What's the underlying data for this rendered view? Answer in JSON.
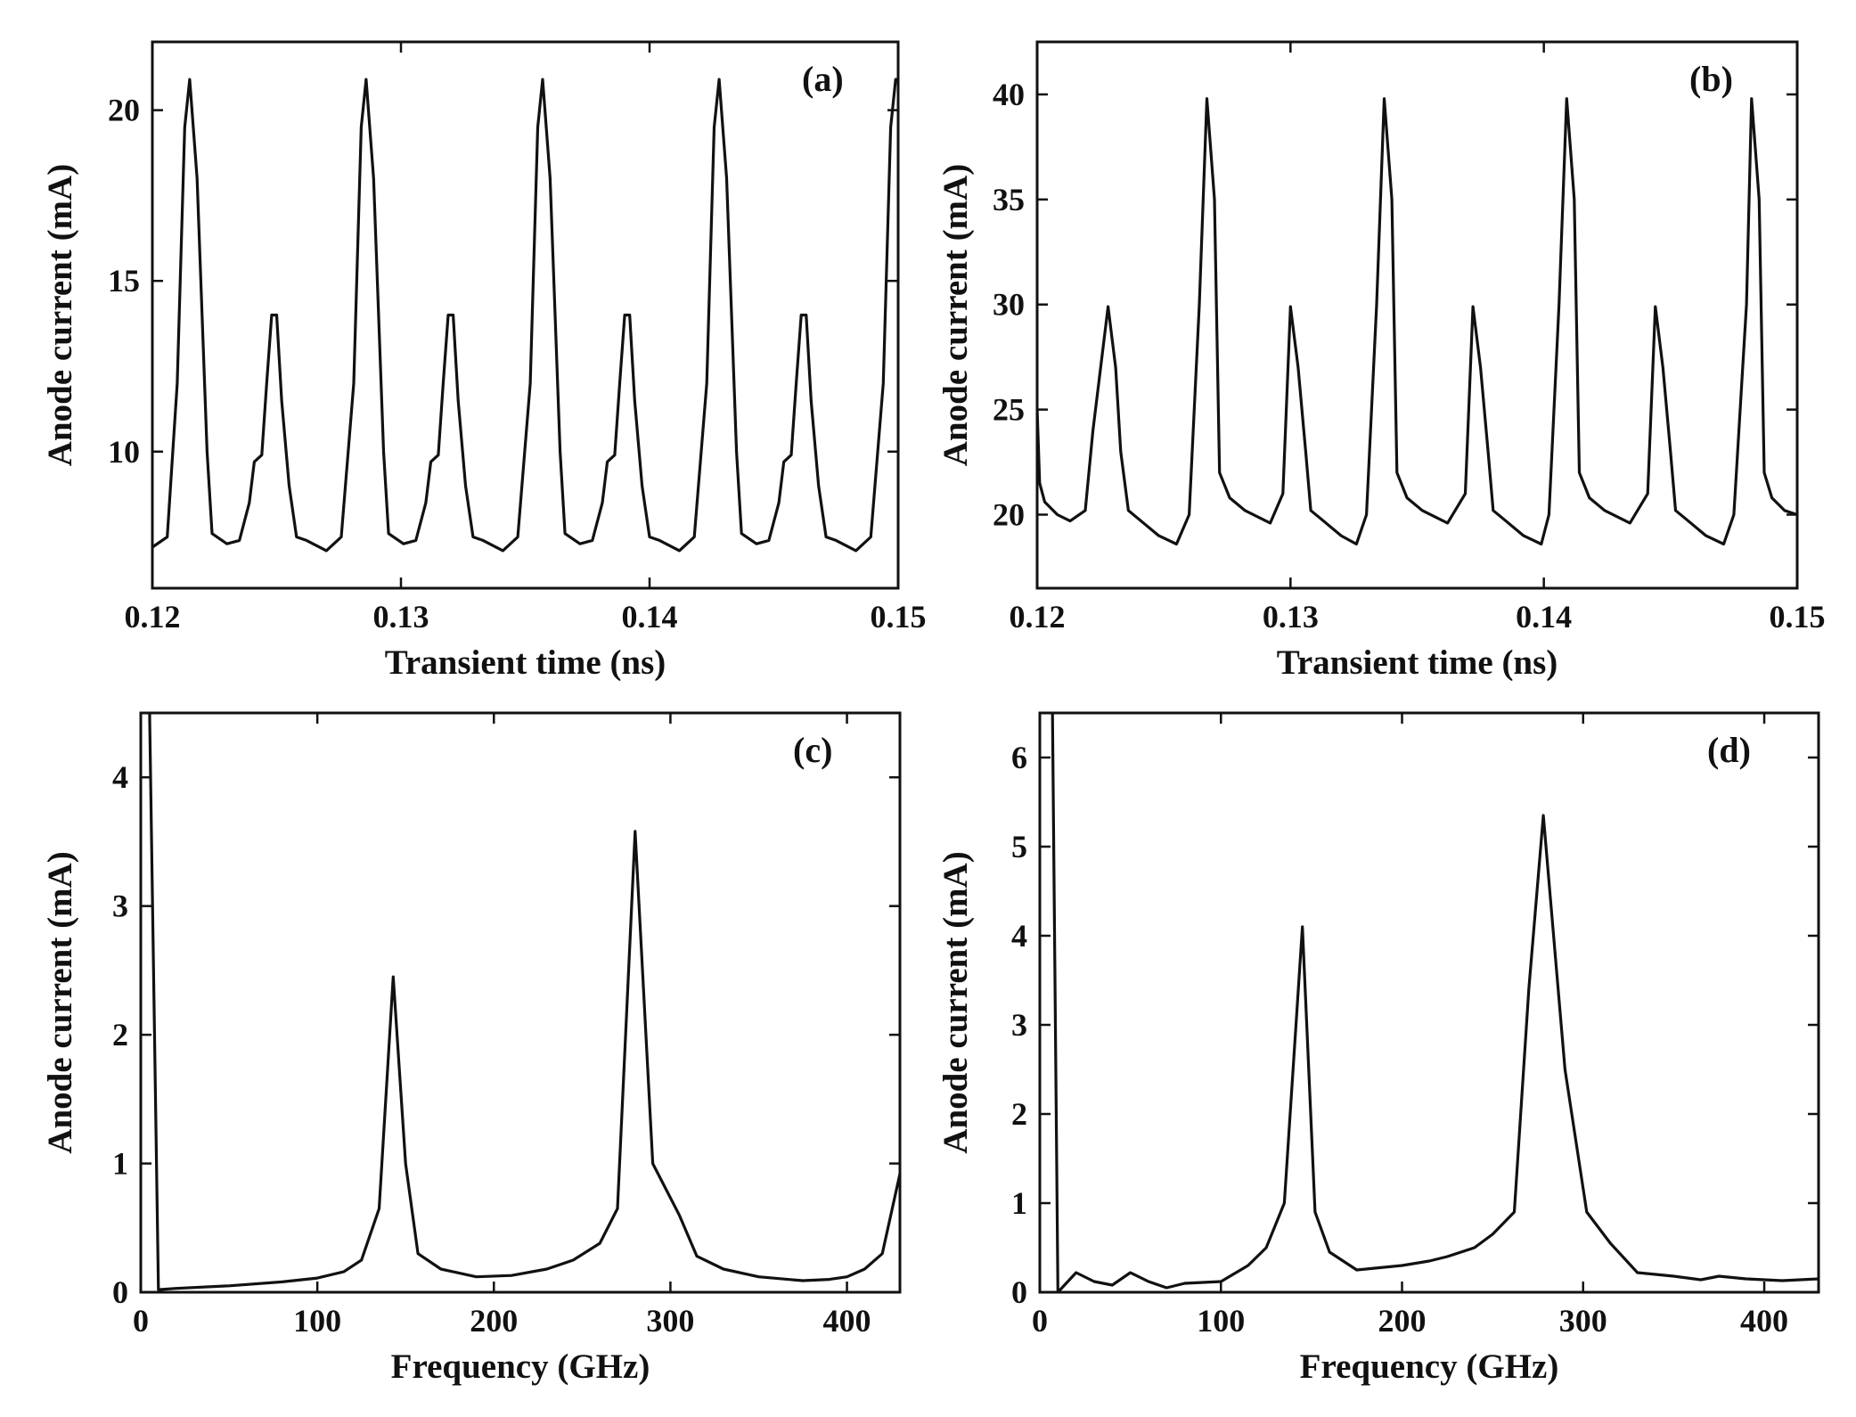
{
  "figure": {
    "panels": [
      "a",
      "b",
      "c",
      "d"
    ]
  },
  "chart_data": [
    {
      "id": "a",
      "type": "line",
      "label": "(a)",
      "xlabel": "Transient time (ns)",
      "ylabel": "Anode current (mA)",
      "xlim": [
        0.12,
        0.15
      ],
      "ylim": [
        6.0,
        22.0
      ],
      "xticks": [
        0.12,
        0.13,
        0.14,
        0.15
      ],
      "xtick_labels": [
        "0.12",
        "0.13",
        "0.14",
        "0.15"
      ],
      "yticks": [
        10,
        15,
        20
      ],
      "ytick_labels": [
        "10",
        "15",
        "20"
      ],
      "series": [
        {
          "name": "anode current",
          "x": [
            0.12,
            0.1206,
            0.121,
            0.1213,
            0.1215,
            0.1218,
            0.1222,
            0.1224,
            0.123,
            0.1235,
            0.1239,
            0.1241,
            0.1244,
            0.1246,
            0.1248,
            0.125,
            0.1252,
            0.1255,
            0.1258,
            0.1262,
            0.127,
            0.1276,
            0.1281,
            0.1284,
            0.1286,
            0.1289,
            0.1293,
            0.1295,
            0.1301,
            0.1306,
            0.131,
            0.1312,
            0.1315,
            0.1317,
            0.1319,
            0.1321,
            0.1323,
            0.1326,
            0.1329,
            0.1333,
            0.1341,
            0.1347,
            0.1352,
            0.1355,
            0.1357,
            0.136,
            0.1364,
            0.1366,
            0.1372,
            0.1377,
            0.1381,
            0.1383,
            0.1386,
            0.1388,
            0.139,
            0.1392,
            0.1394,
            0.1397,
            0.14,
            0.1404,
            0.1412,
            0.1418,
            0.1423,
            0.1426,
            0.1428,
            0.1431,
            0.1435,
            0.1437,
            0.1443,
            0.1448,
            0.1452,
            0.1454,
            0.1457,
            0.1459,
            0.1461,
            0.1463,
            0.1465,
            0.1468,
            0.1471,
            0.1475,
            0.1483,
            0.1489,
            0.1494,
            0.1497,
            0.1499,
            0.15
          ],
          "values": [
            7.2,
            7.5,
            12.0,
            19.5,
            20.9,
            18.0,
            10.0,
            7.6,
            7.3,
            7.4,
            8.5,
            9.7,
            9.9,
            12.0,
            14.0,
            14.0,
            11.5,
            9.0,
            7.5,
            7.4,
            7.1,
            7.5,
            12.0,
            19.5,
            20.9,
            18.0,
            10.0,
            7.6,
            7.3,
            7.4,
            8.5,
            9.7,
            9.9,
            12.0,
            14.0,
            14.0,
            11.5,
            9.0,
            7.5,
            7.4,
            7.1,
            7.5,
            12.0,
            19.5,
            20.9,
            18.0,
            10.0,
            7.6,
            7.3,
            7.4,
            8.5,
            9.7,
            9.9,
            12.0,
            14.0,
            14.0,
            11.5,
            9.0,
            7.5,
            7.4,
            7.1,
            7.5,
            12.0,
            19.5,
            20.9,
            18.0,
            10.0,
            7.6,
            7.3,
            7.4,
            8.5,
            9.7,
            9.9,
            12.0,
            14.0,
            14.0,
            11.5,
            9.0,
            7.5,
            7.4,
            7.1,
            7.5,
            12.0,
            19.5,
            20.9,
            20.9
          ]
        }
      ]
    },
    {
      "id": "b",
      "type": "line",
      "label": "(b)",
      "xlabel": "Transient time (ns)",
      "ylabel": "Anode current (mA)",
      "xlim": [
        0.12,
        0.15
      ],
      "ylim": [
        16.5,
        42.5
      ],
      "xticks": [
        0.12,
        0.13,
        0.14,
        0.15
      ],
      "xtick_labels": [
        "0.12",
        "0.13",
        "0.14",
        "0.15"
      ],
      "yticks": [
        20,
        25,
        30,
        35,
        40
      ],
      "ytick_labels": [
        "20",
        "25",
        "30",
        "35",
        "40"
      ],
      "series": [
        {
          "name": "anode current",
          "x": [
            0.12,
            0.1201,
            0.1203,
            0.1208,
            0.1213,
            0.1219,
            0.1222,
            0.1228,
            0.1231,
            0.1233,
            0.1236,
            0.124,
            0.1248,
            0.1255,
            0.126,
            0.1264,
            0.1267,
            0.127,
            0.1272,
            0.1276,
            0.1282,
            0.1292,
            0.1297,
            0.13,
            0.1303,
            0.1306,
            0.1308,
            0.1312,
            0.132,
            0.1326,
            0.133,
            0.1334,
            0.1337,
            0.134,
            0.1342,
            0.1346,
            0.1352,
            0.1362,
            0.1369,
            0.1372,
            0.1375,
            0.1378,
            0.138,
            0.1384,
            0.1392,
            0.1399,
            0.1402,
            0.1406,
            0.1409,
            0.1412,
            0.1414,
            0.1418,
            0.1424,
            0.1434,
            0.1441,
            0.1444,
            0.1447,
            0.145,
            0.1452,
            0.1456,
            0.1464,
            0.1471,
            0.1475,
            0.148,
            0.1482,
            0.1485,
            0.1487,
            0.149,
            0.1495,
            0.15
          ],
          "values": [
            25.0,
            21.5,
            20.6,
            20.0,
            19.7,
            20.2,
            24.0,
            29.9,
            27.0,
            23.0,
            20.2,
            19.8,
            19.0,
            18.6,
            20.0,
            30.0,
            39.8,
            35.0,
            22.0,
            20.8,
            20.2,
            19.6,
            21.0,
            29.9,
            27.0,
            23.0,
            20.2,
            19.8,
            19.0,
            18.6,
            20.0,
            30.0,
            39.8,
            35.0,
            22.0,
            20.8,
            20.2,
            19.6,
            21.0,
            29.9,
            27.0,
            23.0,
            20.2,
            19.8,
            19.0,
            18.6,
            20.0,
            30.0,
            39.8,
            35.0,
            22.0,
            20.8,
            20.2,
            19.6,
            21.0,
            29.9,
            27.0,
            23.0,
            20.2,
            19.8,
            19.0,
            18.6,
            20.0,
            30.0,
            39.8,
            35.0,
            22.0,
            20.8,
            20.2,
            20.0
          ]
        }
      ]
    },
    {
      "id": "c",
      "type": "line",
      "label": "(c)",
      "xlabel": "Frequency (GHz)",
      "ylabel": "Anode current (mA)",
      "xlim": [
        0,
        430
      ],
      "ylim": [
        0,
        4.5
      ],
      "xticks": [
        0,
        100,
        200,
        300,
        400
      ],
      "xtick_labels": [
        "0",
        "100",
        "200",
        "300",
        "400"
      ],
      "yticks": [
        0,
        1,
        2,
        3,
        4
      ],
      "ytick_labels": [
        "0",
        "1",
        "2",
        "3",
        "4"
      ],
      "series": [
        {
          "name": "spectrum",
          "x": [
            5,
            10,
            20,
            50,
            80,
            100,
            115,
            125,
            135,
            143,
            150,
            157,
            170,
            190,
            210,
            230,
            245,
            260,
            270,
            280,
            290,
            305,
            315,
            330,
            350,
            375,
            390,
            400,
            410,
            420,
            430
          ],
          "values": [
            4.5,
            0.02,
            0.03,
            0.05,
            0.08,
            0.11,
            0.16,
            0.25,
            0.65,
            2.45,
            1.0,
            0.3,
            0.18,
            0.12,
            0.13,
            0.18,
            0.25,
            0.38,
            0.65,
            3.58,
            1.0,
            0.6,
            0.28,
            0.18,
            0.12,
            0.09,
            0.1,
            0.12,
            0.18,
            0.3,
            0.92
          ]
        }
      ]
    },
    {
      "id": "d",
      "type": "line",
      "label": "(d)",
      "xlabel": "Frequency (GHz)",
      "ylabel": "Anode current (mA)",
      "xlim": [
        0,
        430
      ],
      "ylim": [
        0,
        6.5
      ],
      "xticks": [
        0,
        100,
        200,
        300,
        400
      ],
      "xtick_labels": [
        "0",
        "100",
        "200",
        "300",
        "400"
      ],
      "yticks": [
        0,
        1,
        2,
        3,
        4,
        5,
        6
      ],
      "ytick_labels": [
        "0",
        "1",
        "2",
        "3",
        "4",
        "5",
        "6"
      ],
      "series": [
        {
          "name": "spectrum",
          "x": [
            7,
            10,
            20,
            30,
            40,
            50,
            60,
            70,
            80,
            100,
            115,
            125,
            135,
            145,
            152,
            160,
            175,
            200,
            215,
            225,
            240,
            250,
            262,
            270,
            278,
            290,
            302,
            315,
            330,
            350,
            365,
            375,
            390,
            410,
            430
          ],
          "values": [
            6.5,
            0.0,
            0.22,
            0.12,
            0.08,
            0.22,
            0.12,
            0.05,
            0.1,
            0.12,
            0.3,
            0.5,
            1.0,
            4.1,
            0.9,
            0.45,
            0.25,
            0.3,
            0.35,
            0.4,
            0.5,
            0.65,
            0.9,
            3.4,
            5.35,
            2.5,
            0.9,
            0.55,
            0.22,
            0.18,
            0.14,
            0.18,
            0.15,
            0.13,
            0.15
          ]
        }
      ]
    }
  ]
}
